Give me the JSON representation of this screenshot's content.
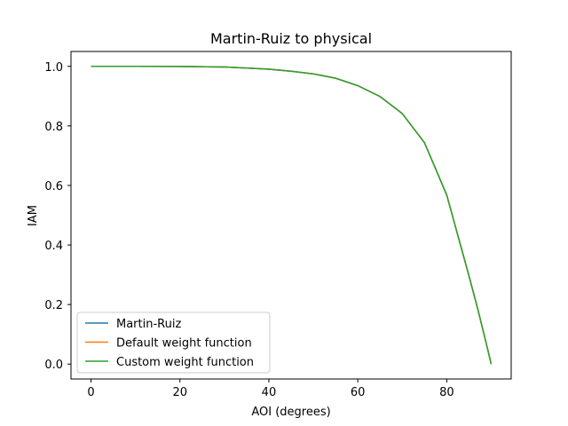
{
  "chart_data": {
    "type": "line",
    "title": "Martin-Ruiz to physical",
    "xlabel": "AOI (degrees)",
    "ylabel": "IAM",
    "xlim": [
      -4.5,
      94.5
    ],
    "ylim": [
      -0.05,
      1.05
    ],
    "xticks": [
      "0",
      "20",
      "40",
      "60",
      "80"
    ],
    "yticks": [
      "0.0",
      "0.2",
      "0.4",
      "0.6",
      "0.8",
      "1.0"
    ],
    "grid": false,
    "legend": "lower-left",
    "series": [
      {
        "name": "Martin-Ruiz",
        "color": "#1f77b4",
        "x": [
          0,
          10,
          20,
          30,
          40,
          45,
          50,
          55,
          60,
          65,
          70,
          75,
          80,
          85,
          87,
          89,
          90
        ],
        "y": [
          1.0,
          0.9999,
          0.9997,
          0.998,
          0.9906,
          0.9838,
          0.9749,
          0.9603,
          0.9353,
          0.8987,
          0.8414,
          0.7434,
          0.5679,
          0.2964,
          0.1839,
          0.0626,
          0.0
        ]
      },
      {
        "name": "Default weight function",
        "color": "#ff7f0e",
        "x": [
          0,
          10,
          20,
          30,
          40,
          45,
          50,
          55,
          60,
          65,
          70,
          75,
          80,
          85,
          87,
          89,
          90
        ],
        "y": [
          1.0,
          0.9999,
          0.9996,
          0.9979,
          0.9905,
          0.9836,
          0.9747,
          0.9602,
          0.9352,
          0.8988,
          0.8416,
          0.7437,
          0.5682,
          0.2966,
          0.184,
          0.0626,
          0.0
        ]
      },
      {
        "name": "Custom weight function",
        "color": "#2ca02c",
        "x": [
          0,
          10,
          20,
          30,
          40,
          45,
          50,
          55,
          60,
          65,
          70,
          75,
          80,
          85,
          87,
          89,
          90
        ],
        "y": [
          1.0,
          0.9999,
          0.9996,
          0.9979,
          0.9905,
          0.9836,
          0.9748,
          0.9602,
          0.9352,
          0.8987,
          0.8415,
          0.7436,
          0.5681,
          0.2965,
          0.1839,
          0.0626,
          0.0
        ]
      }
    ]
  }
}
